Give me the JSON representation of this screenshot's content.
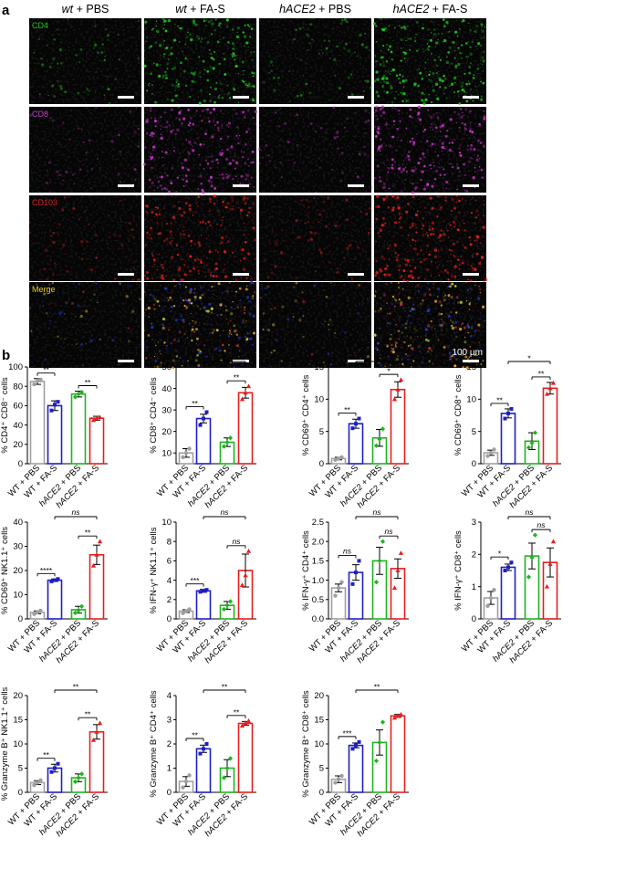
{
  "figure": {
    "panel_a_label": "a",
    "panel_b_label": "b",
    "columns": [
      {
        "genotype": "wt",
        "treatment": " + PBS"
      },
      {
        "genotype": "wt",
        "treatment": " + FA-S"
      },
      {
        "genotype": "hACE2",
        "treatment": " + PBS"
      },
      {
        "genotype": "hACE2",
        "treatment": " + FA-S"
      }
    ],
    "rows": [
      {
        "label": "CD4",
        "color": "#22c322",
        "tint": "#1ec81e"
      },
      {
        "label": "CD8",
        "color": "#c040c0",
        "tint": "#c832c8"
      },
      {
        "label": "CD103",
        "color": "#e02020",
        "tint": "#e61e1e"
      },
      {
        "label": "Merge",
        "color": "#e6d21e",
        "tint": "#e6a028"
      }
    ],
    "scale_bar_label": "100 μm"
  },
  "group_labels": [
    {
      "prefix": "WT",
      "suffix": " + PBS"
    },
    {
      "prefix": "WT",
      "suffix": " + FA-S"
    },
    {
      "prefix": "hACE2",
      "suffix": " + PBS"
    },
    {
      "prefix": "hACE2",
      "suffix": " + FA-S"
    }
  ],
  "group_colors": [
    "#a0a0a0",
    "#1e1ec8",
    "#1eb41e",
    "#e61e1e"
  ],
  "chart_data": [
    {
      "type": "bar",
      "ylabel": "% CD4⁺ CD8⁻ cells",
      "ylim": [
        0,
        100
      ],
      "yticks": [
        0,
        20,
        40,
        60,
        80,
        100
      ],
      "values": [
        85,
        60,
        72,
        47
      ],
      "errors": [
        3,
        5,
        3,
        2
      ],
      "points": [
        [
          82,
          86,
          87
        ],
        [
          55,
          61,
          64
        ],
        [
          69,
          72,
          74
        ],
        [
          45,
          47,
          48
        ]
      ],
      "comparisons": [
        {
          "a": 0,
          "b": 1,
          "label": "**"
        },
        {
          "a": 2,
          "b": 3,
          "label": "**"
        },
        {
          "a": 1,
          "b": 3,
          "label": "*"
        }
      ]
    },
    {
      "type": "bar",
      "ylabel": "% CD8⁺ CD4⁻ cells",
      "ylim": [
        5,
        50
      ],
      "yticks": [
        10,
        20,
        30,
        40,
        50
      ],
      "values": [
        10,
        26,
        15,
        38
      ],
      "errors": [
        2,
        2,
        2,
        2.5
      ],
      "points": [
        [
          8,
          10,
          12
        ],
        [
          23,
          26,
          29
        ],
        [
          13,
          15,
          17
        ],
        [
          35,
          38,
          41
        ]
      ],
      "comparisons": [
        {
          "a": 0,
          "b": 1,
          "label": "**"
        },
        {
          "a": 2,
          "b": 3,
          "label": "**"
        },
        {
          "a": 1,
          "b": 3,
          "label": "*"
        }
      ]
    },
    {
      "type": "bar",
      "ylabel": "% CD69⁺ CD4⁺ cells",
      "ylim": [
        0,
        15
      ],
      "yticks": [
        0,
        5,
        10,
        15
      ],
      "values": [
        0.8,
        6.2,
        4.0,
        11.5
      ],
      "errors": [
        0.2,
        0.7,
        1.3,
        1.2
      ],
      "points": [
        [
          0.6,
          0.8,
          1.0
        ],
        [
          5.5,
          6.2,
          7.0
        ],
        [
          2.8,
          3.8,
          5.4
        ],
        [
          10.0,
          11.5,
          13.0
        ]
      ],
      "comparisons": [
        {
          "a": 0,
          "b": 1,
          "label": "**"
        },
        {
          "a": 2,
          "b": 3,
          "label": "*"
        },
        {
          "a": 1,
          "b": 3,
          "label": "*"
        }
      ]
    },
    {
      "type": "bar",
      "ylabel": "% CD69⁺ CD8⁺ cells",
      "ylim": [
        0,
        15
      ],
      "yticks": [
        0,
        5,
        10,
        15
      ],
      "values": [
        1.7,
        7.8,
        3.5,
        11.7
      ],
      "errors": [
        0.4,
        0.7,
        1.3,
        0.9
      ],
      "points": [
        [
          1.2,
          1.7,
          2.2
        ],
        [
          7.0,
          7.8,
          8.5
        ],
        [
          2.5,
          3.2,
          4.8
        ],
        [
          10.8,
          11.7,
          12.5
        ]
      ],
      "comparisons": [
        {
          "a": 0,
          "b": 1,
          "label": "**"
        },
        {
          "a": 2,
          "b": 3,
          "label": "**"
        },
        {
          "a": 1,
          "b": 3,
          "label": "*"
        }
      ]
    },
    {
      "type": "bar",
      "ylabel": "% CD69⁺ NK1.1⁺ cells",
      "ylim": [
        0,
        40
      ],
      "yticks": [
        0,
        10,
        20,
        30,
        40
      ],
      "values": [
        2.7,
        16,
        3.8,
        26.5
      ],
      "errors": [
        0.6,
        0.5,
        1.4,
        4
      ],
      "points": [
        [
          2.0,
          2.7,
          3.4
        ],
        [
          15.5,
          16,
          16.5
        ],
        [
          2.5,
          3.5,
          5.2
        ],
        [
          22,
          26.5,
          32
        ]
      ],
      "comparisons": [
        {
          "a": 0,
          "b": 1,
          "label": "****"
        },
        {
          "a": 2,
          "b": 3,
          "label": "**"
        },
        {
          "a": 1,
          "b": 3,
          "label": "ns"
        }
      ]
    },
    {
      "type": "bar",
      "ylabel": "% IFN-γ⁺ NK1.1⁺ cells",
      "ylim": [
        0,
        10
      ],
      "yticks": [
        0,
        2,
        4,
        6,
        8,
        10
      ],
      "values": [
        0.8,
        2.9,
        1.4,
        5.0
      ],
      "errors": [
        0.15,
        0.15,
        0.4,
        1.7
      ],
      "points": [
        [
          0.6,
          0.8,
          1.0
        ],
        [
          2.8,
          2.9,
          3.0
        ],
        [
          1.0,
          1.4,
          1.8
        ],
        [
          3.5,
          4.5,
          7.0
        ]
      ],
      "comparisons": [
        {
          "a": 0,
          "b": 1,
          "label": "***"
        },
        {
          "a": 2,
          "b": 3,
          "label": "ns"
        },
        {
          "a": 1,
          "b": 3,
          "label": "ns"
        }
      ]
    },
    {
      "type": "bar",
      "ylabel": "% IFN-γ⁺ CD4⁺ cells",
      "ylim": [
        0,
        2.5
      ],
      "yticks": [
        0.0,
        0.5,
        1.0,
        1.5,
        2.0,
        2.5
      ],
      "values": [
        0.8,
        1.2,
        1.5,
        1.3
      ],
      "errors": [
        0.1,
        0.2,
        0.35,
        0.25
      ],
      "points": [
        [
          0.6,
          0.8,
          0.95
        ],
        [
          0.9,
          1.2,
          1.5
        ],
        [
          0.95,
          1.5,
          2.0
        ],
        [
          0.8,
          1.25,
          1.7
        ]
      ],
      "comparisons": [
        {
          "a": 0,
          "b": 1,
          "label": "ns"
        },
        {
          "a": 2,
          "b": 3,
          "label": "ns"
        },
        {
          "a": 1,
          "b": 3,
          "label": "ns"
        }
      ]
    },
    {
      "type": "bar",
      "ylabel": "% IFN-γ⁺ CD8⁺ cells",
      "ylim": [
        0,
        3
      ],
      "yticks": [
        0,
        1,
        2,
        3
      ],
      "values": [
        0.65,
        1.6,
        1.95,
        1.75
      ],
      "errors": [
        0.2,
        0.1,
        0.4,
        0.45
      ],
      "points": [
        [
          0.4,
          0.65,
          0.9
        ],
        [
          1.5,
          1.6,
          1.75
        ],
        [
          1.3,
          1.9,
          2.6
        ],
        [
          1.0,
          1.7,
          2.4
        ]
      ],
      "comparisons": [
        {
          "a": 0,
          "b": 1,
          "label": "*"
        },
        {
          "a": 2,
          "b": 3,
          "label": "ns"
        },
        {
          "a": 1,
          "b": 3,
          "label": "ns"
        }
      ]
    },
    {
      "type": "bar",
      "ylabel": "% Granzyme B⁺ NK1.1⁺ cells",
      "ylim": [
        0,
        20
      ],
      "yticks": [
        0,
        5,
        10,
        15,
        20
      ],
      "values": [
        2.0,
        5.0,
        3.0,
        12.5
      ],
      "errors": [
        0.4,
        0.8,
        0.8,
        1.5
      ],
      "points": [
        [
          1.5,
          2.0,
          2.5
        ],
        [
          4.2,
          5.0,
          5.9
        ],
        [
          2.2,
          3.0,
          3.8
        ],
        [
          10.8,
          12.5,
          14.3
        ]
      ],
      "comparisons": [
        {
          "a": 0,
          "b": 1,
          "label": "**"
        },
        {
          "a": 2,
          "b": 3,
          "label": "**"
        },
        {
          "a": 1,
          "b": 3,
          "label": "**"
        }
      ]
    },
    {
      "type": "bar",
      "ylabel": "% Granzyme B⁺ CD4⁺ cells",
      "ylim": [
        0,
        4
      ],
      "yticks": [
        0,
        1,
        2,
        3,
        4
      ],
      "values": [
        0.45,
        1.8,
        1.0,
        2.85
      ],
      "errors": [
        0.2,
        0.15,
        0.35,
        0.08
      ],
      "points": [
        [
          0.2,
          0.45,
          0.7
        ],
        [
          1.6,
          1.8,
          2.0
        ],
        [
          0.6,
          1.0,
          1.4
        ],
        [
          2.75,
          2.85,
          2.95
        ]
      ],
      "comparisons": [
        {
          "a": 0,
          "b": 1,
          "label": "**"
        },
        {
          "a": 2,
          "b": 3,
          "label": "**"
        },
        {
          "a": 1,
          "b": 3,
          "label": "**"
        }
      ]
    },
    {
      "type": "bar",
      "ylabel": "% Granzyme B⁺ CD8⁺ cells",
      "ylim": [
        0,
        20
      ],
      "yticks": [
        0,
        5,
        10,
        15,
        20
      ],
      "values": [
        2.7,
        9.7,
        10.3,
        15.8
      ],
      "errors": [
        0.7,
        0.5,
        2.6,
        0.3
      ],
      "points": [
        [
          2.0,
          2.7,
          3.4
        ],
        [
          9.0,
          9.7,
          10.4
        ],
        [
          6.5,
          10.3,
          14.5
        ],
        [
          15.4,
          15.8,
          16.1
        ]
      ],
      "comparisons": [
        {
          "a": 0,
          "b": 1,
          "label": "***"
        },
        {
          "a": 1,
          "b": 3,
          "label": "**"
        }
      ]
    }
  ]
}
